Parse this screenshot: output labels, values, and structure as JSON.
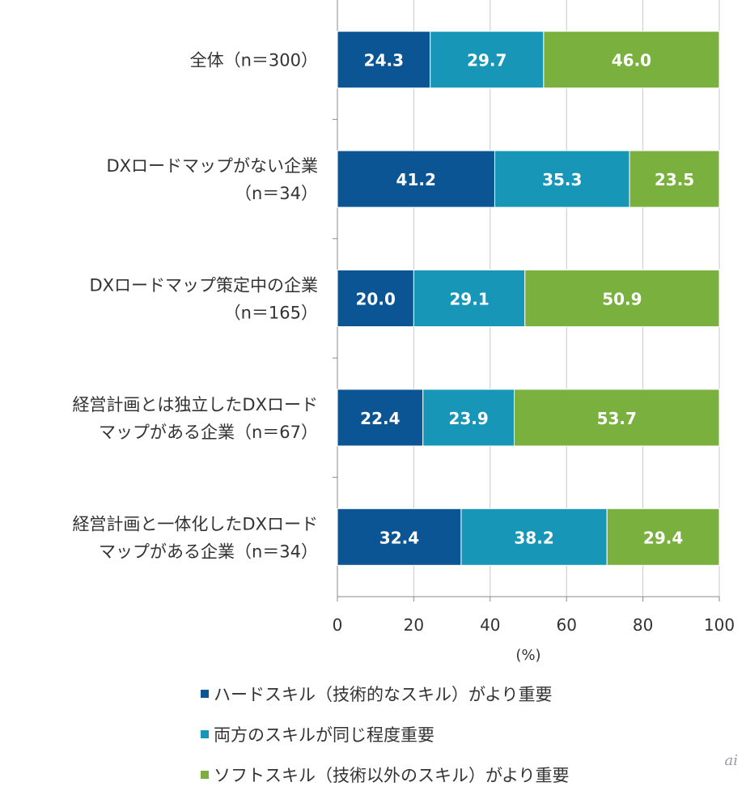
{
  "chart_data": {
    "type": "bar",
    "orientation": "horizontal",
    "stacked": true,
    "categories": [
      [
        "全体（n＝300）"
      ],
      [
        "DXロードマップがない企業",
        "（n＝34）"
      ],
      [
        "DXロードマップ策定中の企業",
        "（n＝165）"
      ],
      [
        "経営計画とは独立したDXロード",
        "マップがある企業（n＝67）"
      ],
      [
        "経営計画と一体化したDXロード",
        "マップがある企業（n＝34）"
      ]
    ],
    "series": [
      {
        "name": "ハードスキル（技術的なスキル）がより重要",
        "color": "#0b5595",
        "values": [
          24.3,
          41.2,
          20.0,
          22.4,
          32.4
        ]
      },
      {
        "name": "両方のスキルが同じ程度重要",
        "color": "#1896b8",
        "values": [
          29.7,
          35.3,
          29.1,
          23.9,
          38.2
        ]
      },
      {
        "name": "ソフトスキル（技術以外のスキル）がより重要",
        "color": "#79b03e",
        "values": [
          46.0,
          23.5,
          50.9,
          53.7,
          29.4
        ]
      }
    ],
    "value_labels": [
      [
        "24.3",
        "41.2",
        "20.0",
        "22.4",
        "32.4"
      ],
      [
        "29.7",
        "35.3",
        "29.1",
        "23.9",
        "38.2"
      ],
      [
        "46.0",
        "23.5",
        "50.9",
        "53.7",
        "29.4"
      ]
    ],
    "xlim": [
      0,
      100
    ],
    "xticks": [
      0,
      20,
      40,
      60,
      80,
      100
    ],
    "xlabel": "(%)",
    "grid": true,
    "legend_position": "bottom"
  },
  "watermark": "ai"
}
